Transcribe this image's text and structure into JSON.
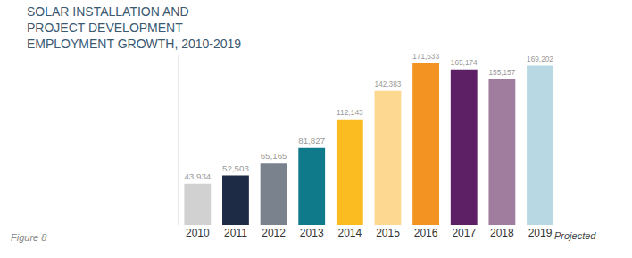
{
  "chart_data": {
    "type": "bar",
    "title": "SOLAR INSTALLATION AND\nPROJECT DEVELOPMENT\nEMPLOYMENT GROWTH, 2010-2019",
    "categories": [
      "2010",
      "2011",
      "2012",
      "2013",
      "2014",
      "2015",
      "2016",
      "2017",
      "2018",
      "2019"
    ],
    "values": [
      43934,
      52503,
      65165,
      81827,
      112143,
      142383,
      171533,
      165174,
      155157,
      169202
    ],
    "value_labels": [
      "43,934",
      "52,503",
      "65,165",
      "81,827",
      "112,143",
      "142,383",
      "171,533",
      "165,174",
      "155,157",
      "169,202"
    ],
    "colors": [
      "#d1d1d1",
      "#1d2b45",
      "#7a828e",
      "#0f7b8a",
      "#fbbc22",
      "#fdd890",
      "#f39322",
      "#5d2064",
      "#a07c9e",
      "#b8d9e4"
    ],
    "ylim": [
      0,
      180000
    ],
    "grid": false,
    "data_labels": true,
    "tick_labels": "x",
    "annotations": [
      {
        "text": "Projected",
        "x": "2019"
      },
      {
        "text": "Figure 8"
      }
    ]
  }
}
